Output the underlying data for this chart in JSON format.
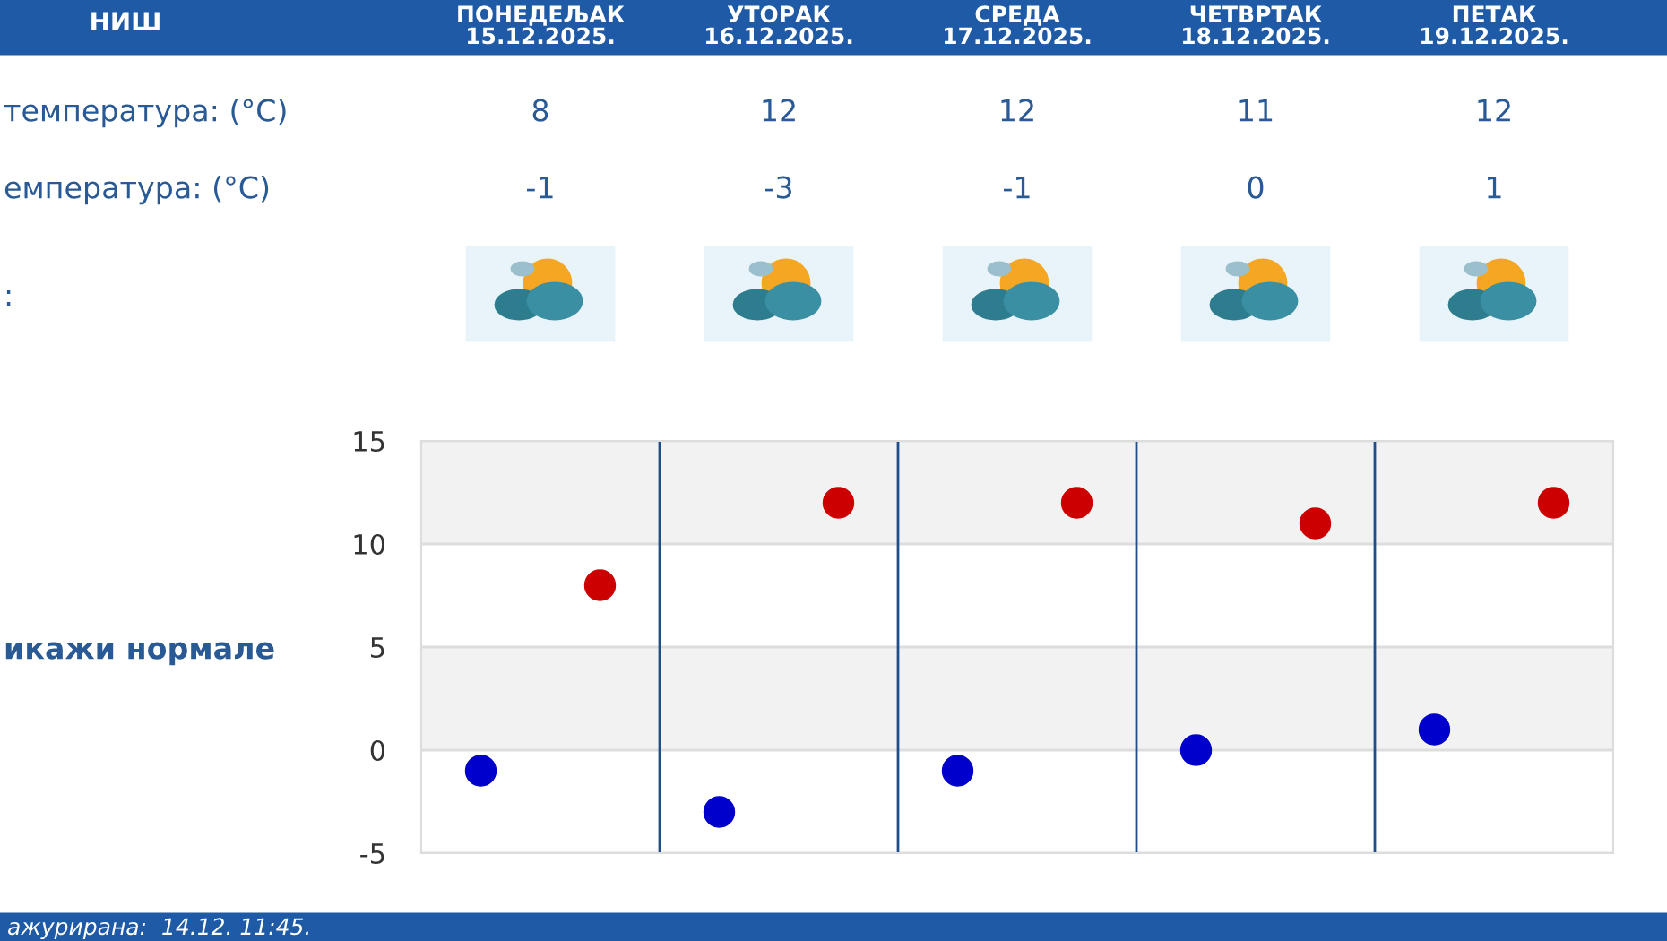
{
  "chart_data": [
    {
      "type": "other",
      "title": "НИШ",
      "categories": [
        "ПОНЕДЕЉАК\n15.12.2025.",
        "УТОРАК\n16.12.2025.",
        "СРЕДА\n17.12.2025.",
        "ЧЕТВРТАК\n18.12.2025.",
        "ПЕТАК\n19.12.2025."
      ],
      "series": [
        {
          "name": "температура: (°C)",
          "values": [
            8,
            12,
            12,
            11,
            12
          ]
        },
        {
          "name": "емпература: (°C)",
          "values": [
            -1,
            -3,
            -1,
            0,
            1
          ]
        }
      ],
      "data_labels": true,
      "annotations": [
        ":"
      ]
    },
    {
      "type": "scatter",
      "categories": [
        null,
        null,
        null,
        null,
        null,
        null,
        null,
        null,
        null,
        null
      ],
      "ylim": [
        -5,
        15
      ],
      "yticks": [
        -5,
        0,
        5,
        10,
        15
      ],
      "grid": true,
      "marker": "circle",
      "bands": [
        {
          "axis": "y",
          "from": 10,
          "to": 15,
          "color": "#f2f2f2"
        },
        {
          "axis": "y",
          "from": 0,
          "to": 5,
          "color": "#f2f2f2"
        }
      ],
      "series": [
        {
          "color": "#cc0000",
          "values": [
            null,
            8,
            null,
            12,
            null,
            12,
            null,
            11,
            null,
            12
          ]
        },
        {
          "color": "#0000cc",
          "values": [
            -1,
            null,
            -3,
            null,
            -1,
            null,
            0,
            null,
            1,
            null
          ]
        }
      ],
      "annotations": [
        "икажи нормале",
        "ажурирана:  14.12. 11:45."
      ]
    }
  ]
}
